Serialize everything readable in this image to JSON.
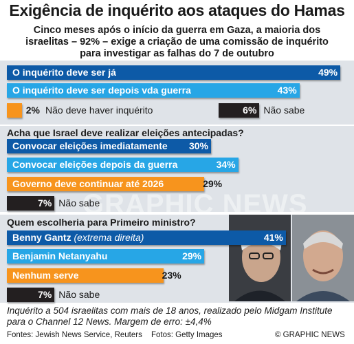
{
  "title": "Exigência de inquérito aos ataques do Hamas",
  "subtitle": [
    "Cinco meses após o início da guerra em Gaza, a maioria dos",
    "israelitas – 92% – exige a criação de uma comissão de inquérito",
    "para investigar as falhas do 7 de outubro"
  ],
  "watermark": "GRAPHIC NEWS",
  "colors": {
    "dark_blue": "#0d5aa7",
    "light_blue": "#27a6e6",
    "orange": "#f7941d",
    "black": "#231f20",
    "panel": "#dfe3e8"
  },
  "chart_data": [
    {
      "type": "bar",
      "title": "",
      "categories": [
        "O inquérito deve ser já",
        "O inquérito deve ser depois vda guerra",
        "Não deve haver inquérito",
        "Não sabe"
      ],
      "values": [
        49,
        43,
        2,
        6
      ],
      "labels": [
        "49%",
        "43%",
        "2%",
        "6%"
      ],
      "ylim": [
        0,
        100
      ]
    },
    {
      "type": "bar",
      "title": "Acha que Israel deve realizar eleições antecipadas?",
      "categories": [
        "Convocar eleições imediatamente",
        "Convocar eleições depois da guerra",
        "Governo deve continuar até 2026",
        "Não sabe"
      ],
      "values": [
        30,
        34,
        29,
        7
      ],
      "labels": [
        "30%",
        "34%",
        "29%",
        "7%"
      ],
      "ylim": [
        0,
        100
      ]
    },
    {
      "type": "bar",
      "title": "Quem escolheria para Primeiro ministro?",
      "categories": [
        "Benny Gantz",
        "Benjamin Netanyahu",
        "Nenhum serve",
        "Não sabe"
      ],
      "category_notes": [
        "(extrema direita)",
        "",
        "",
        ""
      ],
      "values": [
        41,
        29,
        23,
        7
      ],
      "labels": [
        "41%",
        "29%",
        "23%",
        "7%"
      ],
      "ylim": [
        0,
        100
      ]
    }
  ],
  "footnote": [
    "Inquérito a 504 israelitas com mais de 18 anos, realizado pelo Midgam Institute",
    "para o Channel 12 News. Margem de erro: ±4,4%"
  ],
  "sources": "Fontes: Jewish News Service, Reuters",
  "photos_credit": "Fotos: Getty Images",
  "copyright": "© GRAPHIC NEWS"
}
